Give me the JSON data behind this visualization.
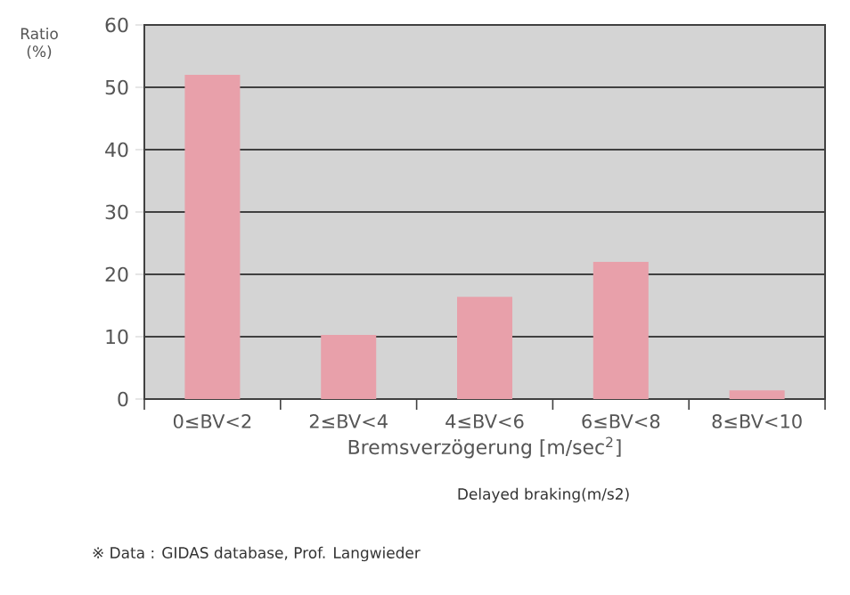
{
  "chart_data": {
    "type": "bar",
    "ylabel": "Ratio (%)",
    "xlabel": "Bremsverzögerung [m/sec$^{2}$]",
    "categories": [
      "0≤BV<2",
      "2≤BV<4",
      "4≤BV<6",
      "6≤BV<8",
      "8≤BV<10"
    ],
    "values": [
      52,
      10.3,
      16.4,
      22,
      1.4
    ],
    "color": "#e8a0aa",
    "ylim": [
      0,
      60
    ],
    "yticks": [
      0,
      10,
      20,
      30,
      40,
      50,
      60
    ],
    "grid": "y",
    "annotations": [
      "Delayed braking(m/s2)",
      "※ Data : GIDAS database, Prof. Langwieder"
    ]
  }
}
